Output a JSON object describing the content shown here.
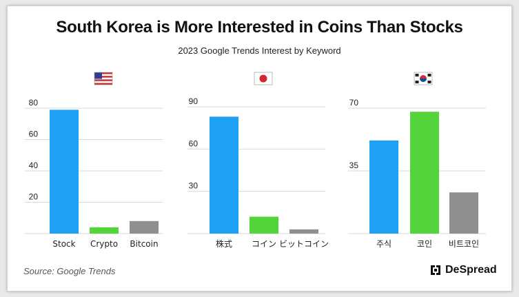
{
  "title": "South Korea is More Interested in Coins Than Stocks",
  "subtitle": "2023 Google Trends Interest by Keyword",
  "source": "Source: Google Trends",
  "brand": "DeSpread",
  "colors": {
    "blue": "#1ea1f5",
    "green": "#52d43a",
    "gray": "#8f8f8f",
    "grid": "#d9d9d9"
  },
  "chart_data": [
    {
      "type": "bar",
      "country": "United States",
      "flag_icon": "us-flag-icon",
      "categories": [
        "Stock",
        "Crypto",
        "Bitcoin"
      ],
      "values": [
        79,
        4,
        8
      ],
      "yticks": [
        20,
        40,
        60,
        80
      ],
      "ylim": [
        0,
        80
      ]
    },
    {
      "type": "bar",
      "country": "Japan",
      "flag_icon": "japan-flag-icon",
      "categories": [
        "株式",
        "コイン",
        "ビットコイン"
      ],
      "values": [
        83,
        12,
        3
      ],
      "yticks": [
        30,
        60,
        90
      ],
      "ylim": [
        0,
        90
      ]
    },
    {
      "type": "bar",
      "country": "South Korea",
      "flag_icon": "korea-flag-icon",
      "categories": [
        "주식",
        "코인",
        "비트코인"
      ],
      "values": [
        52,
        68,
        23
      ],
      "yticks": [
        35,
        70
      ],
      "ylim": [
        0,
        70
      ]
    }
  ]
}
